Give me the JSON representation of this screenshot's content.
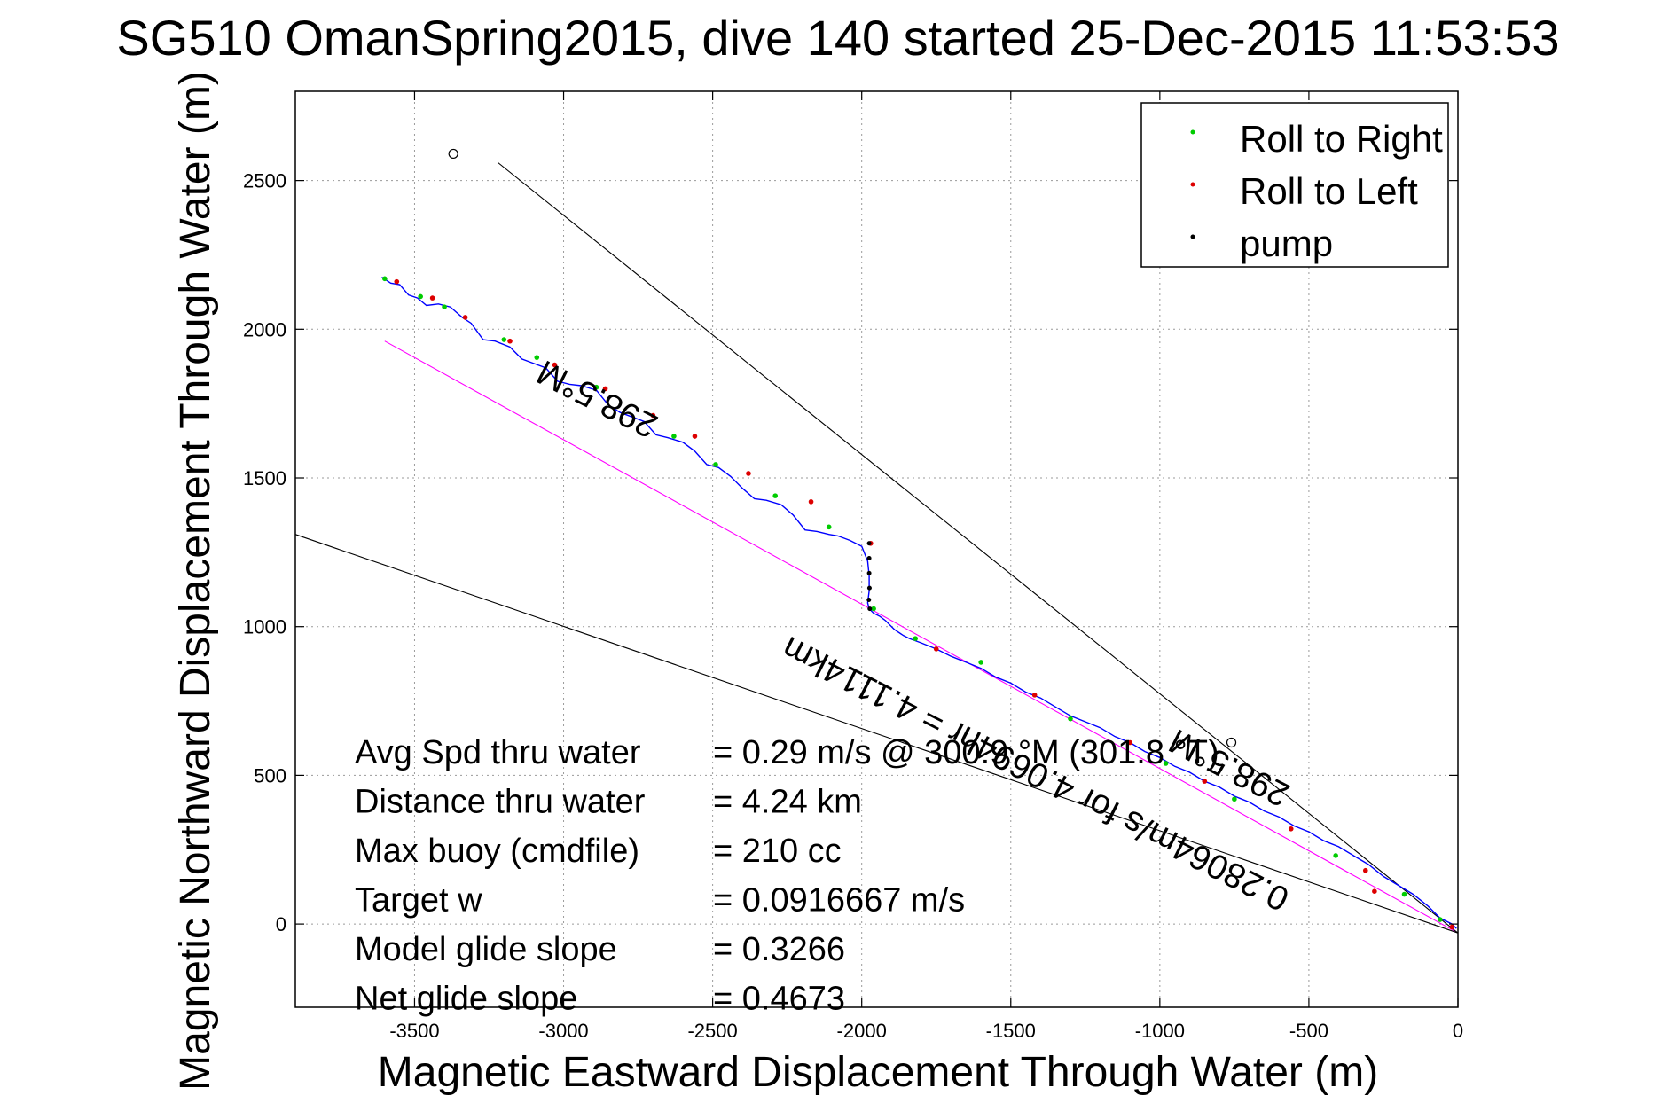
{
  "chart_data": {
    "type": "line",
    "title": "SG510 OmanSpring2015, dive 140 started 25-Dec-2015 11:53:53",
    "xlabel": "Magnetic Eastward Displacement Through Water (m)",
    "ylabel": "Magnetic Northward Displacement Through Water (m)",
    "xlim": [
      -3900,
      0
    ],
    "ylim": [
      -280,
      2800
    ],
    "xticks": [
      -3500,
      -3000,
      -2500,
      -2000,
      -1500,
      -1000,
      -500,
      0
    ],
    "yticks": [
      0,
      500,
      1000,
      1500,
      2000,
      2500
    ],
    "grid": true,
    "legend_position": "top-right",
    "legend": [
      {
        "label": "Roll to Right",
        "color": "#00cc00"
      },
      {
        "label": "Roll to Left",
        "color": "#dd0000"
      },
      {
        "label": "pump",
        "color": "#000000"
      }
    ],
    "series": [
      {
        "style": "track",
        "color": "#0000ff",
        "x": [
          -3610,
          -3580,
          -3550,
          -3520,
          -3490,
          -3460,
          -3420,
          -3380,
          -3340,
          -3310,
          -3270,
          -3230,
          -3180,
          -3140,
          -3100,
          -3060,
          -3020,
          -2980,
          -2940,
          -2890,
          -2850,
          -2810,
          -2770,
          -2730,
          -2690,
          -2650,
          -2600,
          -2560,
          -2520,
          -2480,
          -2440,
          -2400,
          -2360,
          -2320,
          -2270,
          -2230,
          -2190,
          -2150,
          -2110,
          -2080,
          -2040,
          -2000,
          -1980,
          -1975,
          -1975,
          -1980,
          -1975,
          -1960,
          -1940,
          -1920,
          -1890,
          -1860,
          -1840,
          -1800,
          -1750,
          -1700,
          -1650,
          -1600,
          -1550,
          -1500,
          -1450,
          -1400,
          -1350,
          -1300,
          -1250,
          -1200,
          -1150,
          -1100,
          -1050,
          -1000,
          -950,
          -900,
          -850,
          -800,
          -750,
          -700,
          -650,
          -600,
          -550,
          -500,
          -450,
          -400,
          -350,
          -300,
          -250,
          -200,
          -150,
          -100,
          -60,
          -20,
          -5
        ],
        "y": [
          2175,
          2155,
          2150,
          2115,
          2105,
          2080,
          2085,
          2075,
          2040,
          2020,
          1965,
          1960,
          1940,
          1900,
          1885,
          1870,
          1825,
          1815,
          1810,
          1795,
          1745,
          1720,
          1705,
          1690,
          1645,
          1635,
          1620,
          1590,
          1545,
          1535,
          1505,
          1465,
          1430,
          1425,
          1410,
          1375,
          1325,
          1320,
          1310,
          1305,
          1290,
          1270,
          1220,
          1170,
          1120,
          1080,
          1060,
          1045,
          1035,
          1020,
          990,
          970,
          960,
          945,
          925,
          900,
          880,
          860,
          830,
          810,
          780,
          760,
          730,
          700,
          680,
          660,
          630,
          610,
          580,
          560,
          530,
          510,
          480,
          460,
          430,
          410,
          380,
          360,
          330,
          310,
          280,
          260,
          230,
          200,
          160,
          130,
          100,
          60,
          20,
          0,
          -15
        ]
      },
      {
        "style": "magenta-line",
        "color": "#ff00ff",
        "x": [
          -3600,
          0
        ],
        "y": [
          1960,
          -30
        ]
      },
      {
        "style": "black-line",
        "color": "#000000",
        "x": [
          -3900,
          0
        ],
        "y": [
          1310,
          -30
        ]
      },
      {
        "style": "black-line",
        "color": "#000000",
        "x": [
          -3220,
          0
        ],
        "y": [
          2560,
          -30
        ]
      }
    ],
    "markers": {
      "right": {
        "x": [
          -3600,
          -3480,
          -3400,
          -3200,
          -3090,
          -2890,
          -2630,
          -2490,
          -2290,
          -2110,
          -1960,
          -1820,
          -1600,
          -1300,
          -980,
          -750,
          -410,
          -180,
          -60
        ],
        "y": [
          2170,
          2110,
          2075,
          1965,
          1905,
          1805,
          1640,
          1545,
          1440,
          1335,
          1060,
          960,
          880,
          690,
          540,
          420,
          230,
          100,
          15
        ]
      },
      "left": {
        "x": [
          -3560,
          -3440,
          -3330,
          -3180,
          -3030,
          -2860,
          -2700,
          -2560,
          -2380,
          -2170,
          -1970,
          -1750,
          -1420,
          -1100,
          -850,
          -560,
          -310,
          -280,
          -20
        ],
        "y": [
          2160,
          2105,
          2040,
          1960,
          1880,
          1800,
          1710,
          1640,
          1515,
          1420,
          1280,
          925,
          770,
          610,
          480,
          320,
          180,
          110,
          -10
        ]
      },
      "pump": {
        "x": [
          -1975,
          -1975,
          -1975,
          -1974,
          -1976,
          -1973
        ],
        "y": [
          1280,
          1230,
          1180,
          1130,
          1090,
          1060
        ]
      }
    },
    "circles": [
      {
        "x": -3370,
        "y": 2590
      },
      {
        "x": -760,
        "y": 610
      }
    ],
    "annotations": [
      {
        "text": "298.5°M",
        "x": -2870,
        "y": 1800,
        "rotation": 207
      },
      {
        "text": "0.28064m/s for 4.0694hr = 4.1114km",
        "x": -1400,
        "y": 540,
        "rotation": 207
      },
      {
        "text": "298.5°M",
        "x": -750,
        "y": 560,
        "rotation": 207
      }
    ],
    "stats": [
      {
        "label": "Avg Spd thru water",
        "value": "=  0.29 m/s @  300.9  °M (301.8 °T)"
      },
      {
        "label": "Distance thru water",
        "value": "=  4.24 km"
      },
      {
        "label": "Max buoy (cmdfile)",
        "value": "= 210 cc"
      },
      {
        "label": "Target w",
        "value": "= 0.0916667 m/s"
      },
      {
        "label": "Model glide slope",
        "value": "= 0.3266"
      },
      {
        "label": "Net glide slope",
        "value": "= 0.4673"
      }
    ]
  }
}
